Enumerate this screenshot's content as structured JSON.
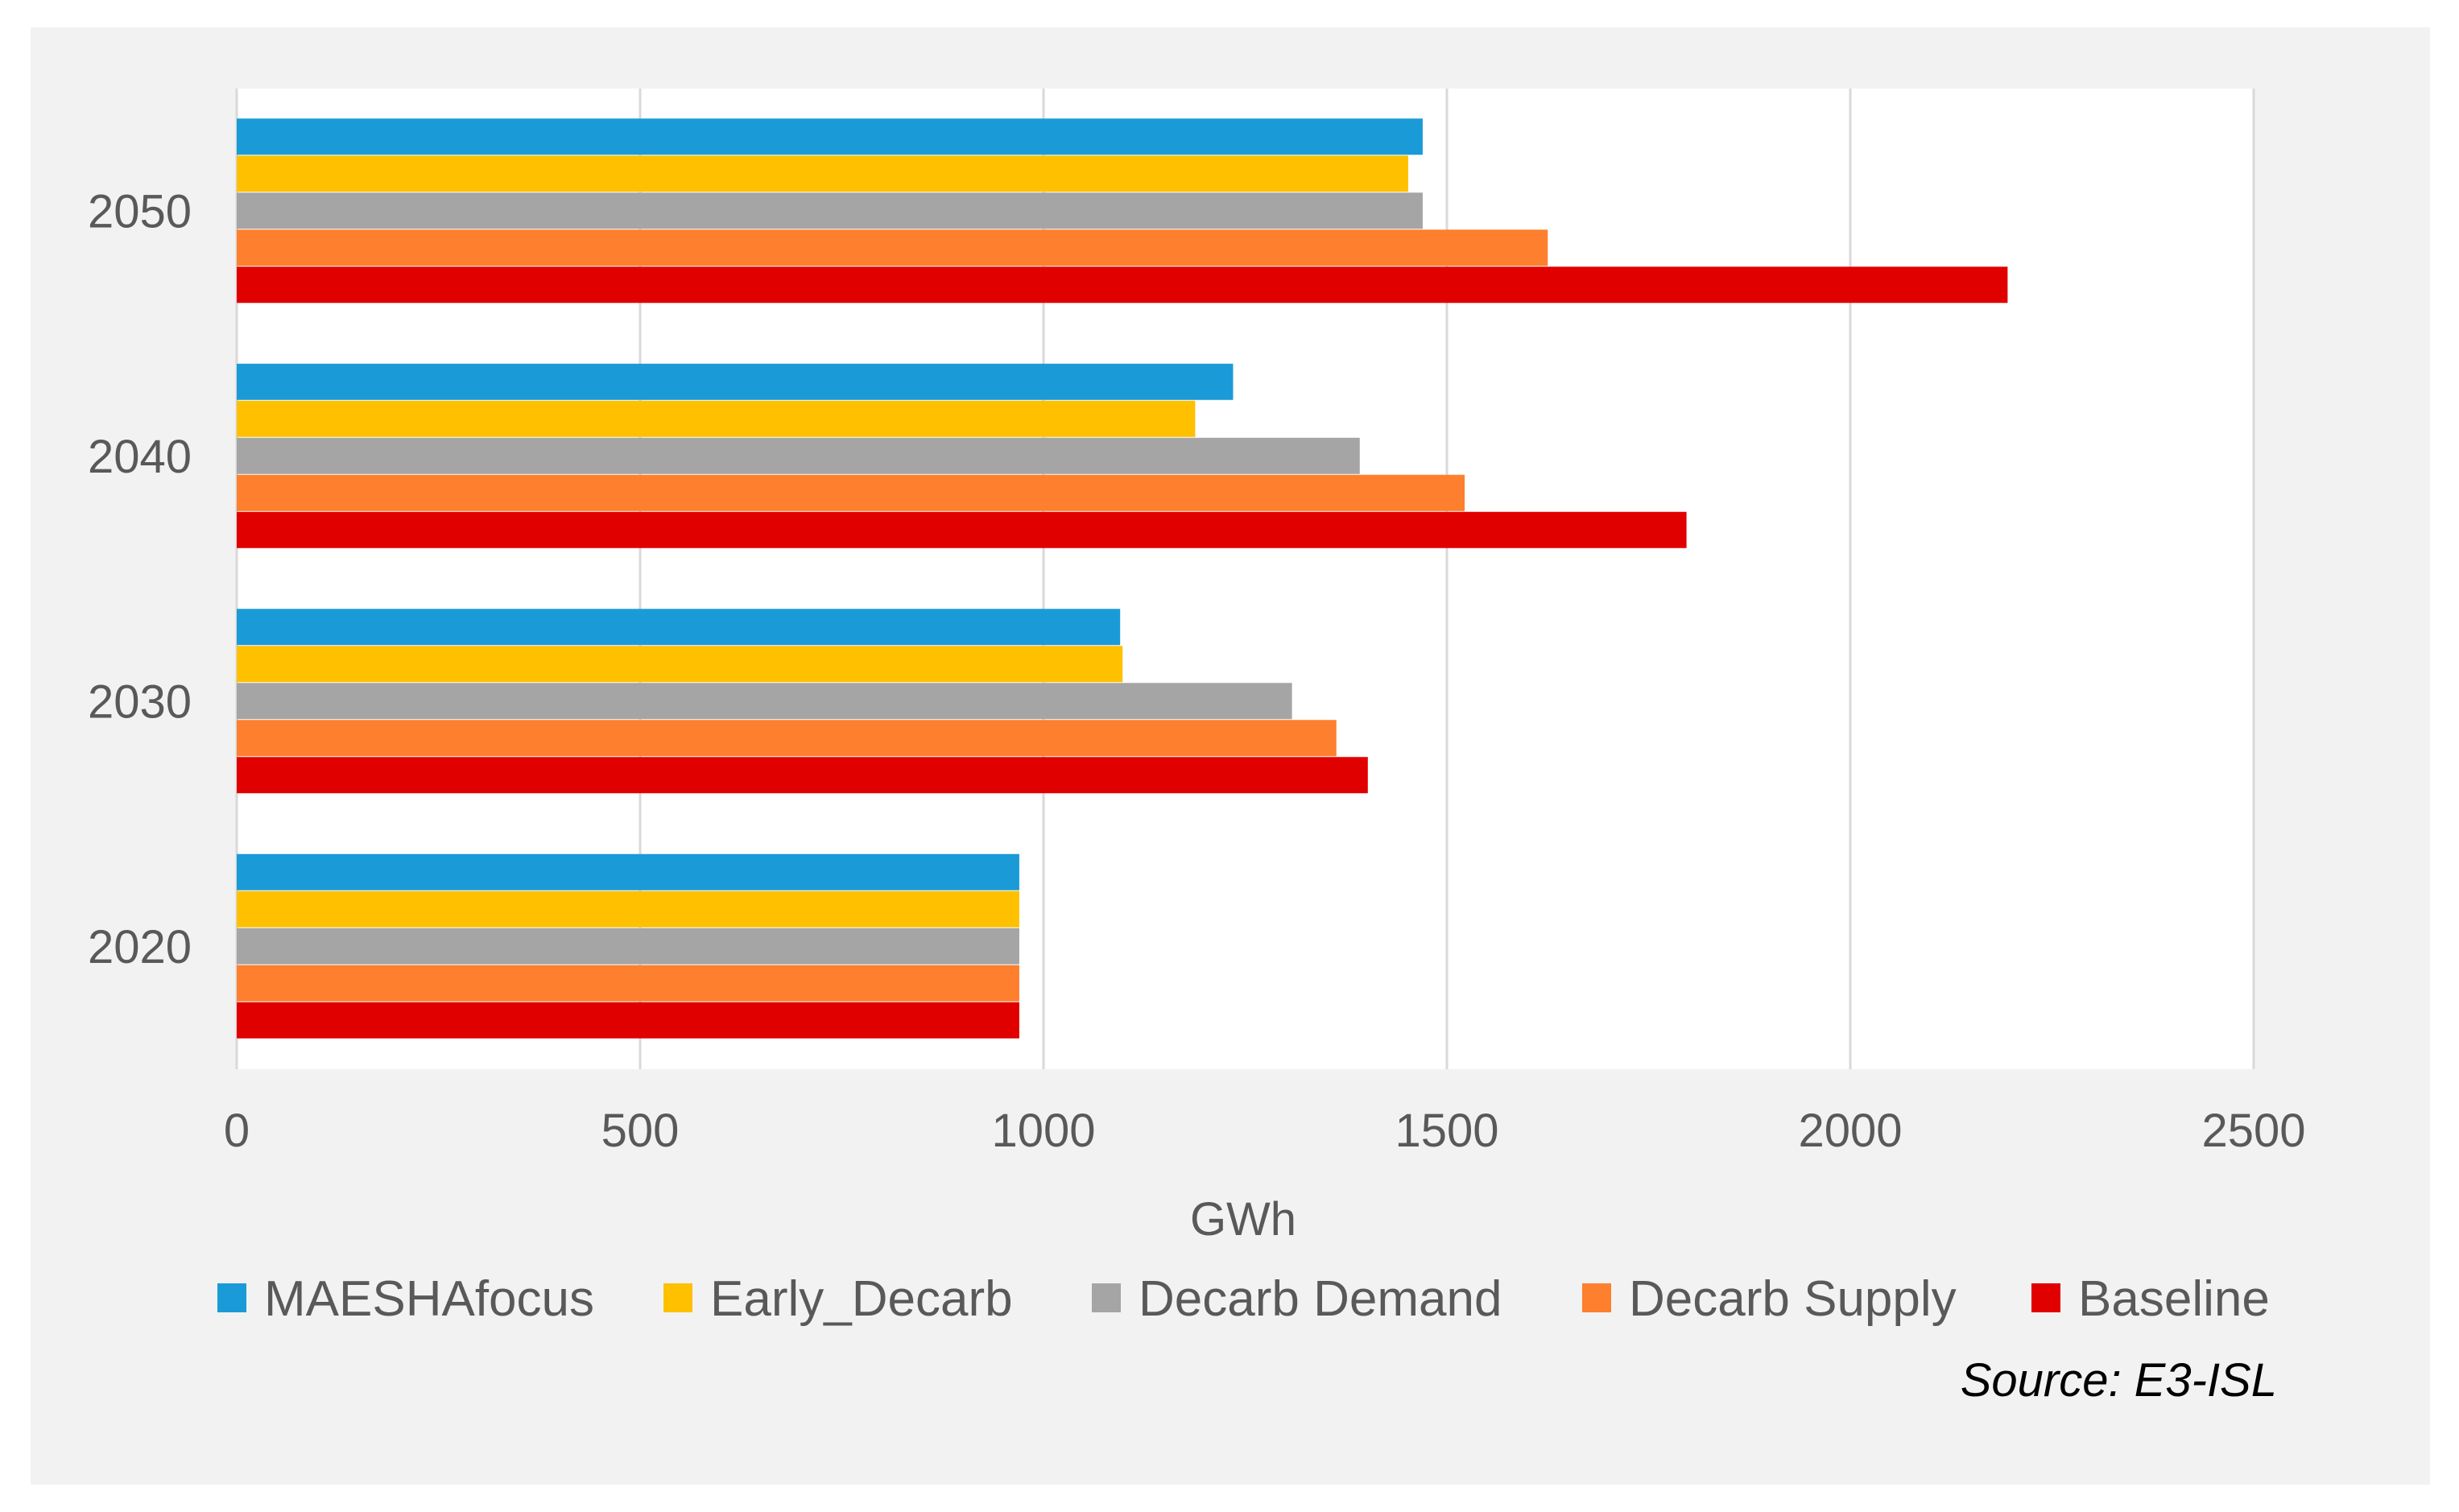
{
  "chart_data": {
    "type": "bar",
    "orientation": "horizontal",
    "title": "",
    "xlabel": "GWh",
    "ylabel": "",
    "xlim": [
      0,
      2500
    ],
    "x_ticks": [
      "0",
      "500",
      "1000",
      "1500",
      "2000",
      "2500"
    ],
    "categories": [
      "2020",
      "2030",
      "2040",
      "2050"
    ],
    "grid": true,
    "legend_position": "bottom",
    "series": [
      {
        "name": "MAESHAfocus",
        "color": "#1a9bd7",
        "values": [
          970,
          1095,
          1235,
          1470
        ]
      },
      {
        "name": "Early_Decarb",
        "color": "#ffc000",
        "values": [
          970,
          1098,
          1188,
          1452
        ]
      },
      {
        "name": "Decarb Demand",
        "color": "#a5a5a5",
        "values": [
          970,
          1308,
          1392,
          1470
        ]
      },
      {
        "name": "Decarb Supply",
        "color": "#fe7f2d",
        "values": [
          970,
          1363,
          1522,
          1625
        ]
      },
      {
        "name": "Baseline",
        "color": "#e00000",
        "values": [
          970,
          1402,
          1797,
          2195
        ]
      }
    ],
    "source": "Source: E3-ISL"
  }
}
